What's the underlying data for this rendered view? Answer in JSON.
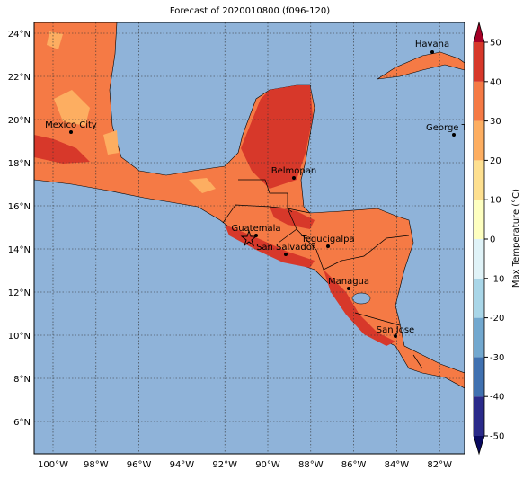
{
  "title": "Forecast of 2020010800 (f096-120)",
  "map": {
    "lat_labels": [
      "24°N",
      "22°N",
      "20°N",
      "18°N",
      "16°N",
      "14°N",
      "12°N",
      "10°N",
      "8°N",
      "6°N"
    ],
    "lon_labels": [
      "100°W",
      "98°W",
      "96°W",
      "94°W",
      "92°W",
      "90°W",
      "88°W",
      "86°W",
      "84°W",
      "82°W"
    ],
    "cities": [
      "Havana",
      "Mexico City",
      "George Town",
      "Belmopan",
      "Guatemala",
      "Tegucigalpa",
      "San Salvador",
      "Managua",
      "San Jose"
    ]
  },
  "colorbar": {
    "label": "Max Temperature (°C)",
    "ticks": [
      -50,
      -40,
      -30,
      -20,
      -10,
      0,
      10,
      20,
      30,
      40,
      50
    ],
    "colors": [
      "#2a2a8a",
      "#4071b0",
      "#72a8cf",
      "#a9d6e8",
      "#e0f3f8",
      "#feffc0",
      "#fee090",
      "#fdae61",
      "#f57a45",
      "#d7382a"
    ],
    "under_color": "#0a0a60",
    "over_color": "#a50026"
  }
}
